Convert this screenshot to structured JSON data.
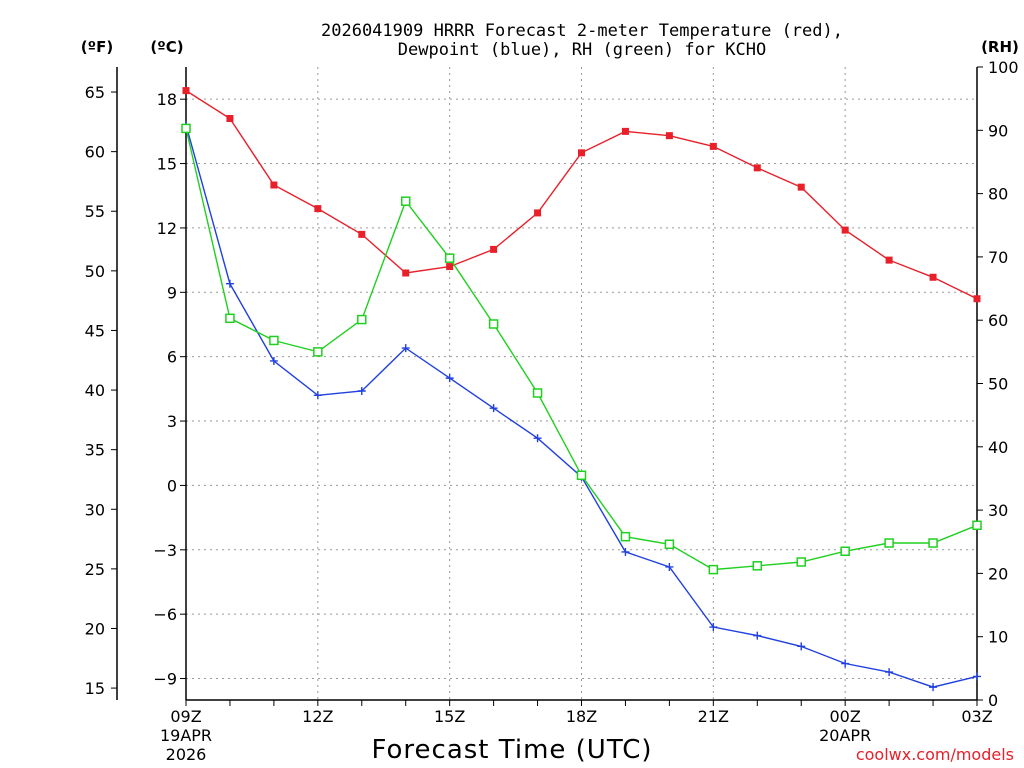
{
  "chart_data": {
    "type": "line",
    "title_line1": "2026041909 HRRR Forecast 2-meter Temperature (red),",
    "title_line2": "Dewpoint (blue), RH (green) for KCHO",
    "xlabel": "Forecast Time (UTC)",
    "credit": "coolwx.com/models",
    "x_hours": [
      "09Z",
      "10Z",
      "11Z",
      "12Z",
      "13Z",
      "14Z",
      "15Z",
      "16Z",
      "17Z",
      "18Z",
      "19Z",
      "20Z",
      "21Z",
      "22Z",
      "23Z",
      "00Z",
      "01Z",
      "02Z",
      "03Z"
    ],
    "x_ticks": [
      {
        "label": "09Z",
        "index": 0,
        "sub1": "19APR",
        "sub2": "2026"
      },
      {
        "label": "12Z",
        "index": 3,
        "sub1": "",
        "sub2": ""
      },
      {
        "label": "15Z",
        "index": 6,
        "sub1": "",
        "sub2": ""
      },
      {
        "label": "18Z",
        "index": 9,
        "sub1": "",
        "sub2": ""
      },
      {
        "label": "21Z",
        "index": 12,
        "sub1": "",
        "sub2": ""
      },
      {
        "label": "00Z",
        "index": 15,
        "sub1": "20APR",
        "sub2": ""
      },
      {
        "label": "03Z",
        "index": 18,
        "sub1": "",
        "sub2": ""
      }
    ],
    "axes": {
      "celsius": {
        "unit_label": "(ºC)",
        "range": [
          -10,
          19.5
        ],
        "ticks": [
          18,
          15,
          12,
          9,
          6,
          3,
          0,
          -3,
          -6,
          -9
        ]
      },
      "fahrenheit": {
        "unit_label": "(ºF)",
        "ticks": [
          65,
          60,
          55,
          50,
          45,
          40,
          35,
          30,
          25,
          20,
          15
        ]
      },
      "rh": {
        "unit_label": "(RH)",
        "range": [
          0,
          100
        ],
        "ticks": [
          100,
          90,
          80,
          70,
          60,
          50,
          40,
          30,
          20,
          10,
          0
        ]
      }
    },
    "series": [
      {
        "name": "2-meter Temperature",
        "axis": "celsius",
        "color": "#e8202a",
        "marker": "filled-square",
        "values": [
          18.4,
          17.1,
          14.0,
          12.9,
          11.7,
          9.9,
          10.2,
          11.0,
          12.7,
          15.5,
          16.5,
          16.3,
          15.8,
          14.8,
          13.9,
          11.9,
          10.5,
          9.7,
          8.7
        ]
      },
      {
        "name": "Dewpoint",
        "axis": "celsius",
        "color": "#2040e0",
        "marker": "plus",
        "values": [
          16.8,
          9.4,
          5.8,
          4.2,
          4.4,
          6.4,
          5.0,
          3.6,
          2.2,
          0.4,
          -3.1,
          -3.8,
          -6.6,
          -7.0,
          -7.5,
          -8.3,
          -8.7,
          -9.4,
          -8.9
        ]
      },
      {
        "name": "RH",
        "axis": "rh",
        "color": "#20d020",
        "marker": "open-square",
        "values": [
          90.3,
          60.3,
          56.8,
          55.0,
          60.1,
          78.8,
          69.8,
          59.4,
          48.5,
          35.5,
          25.8,
          24.6,
          20.6,
          21.2,
          21.8,
          23.5,
          24.8,
          24.8,
          27.6
        ]
      }
    ]
  }
}
